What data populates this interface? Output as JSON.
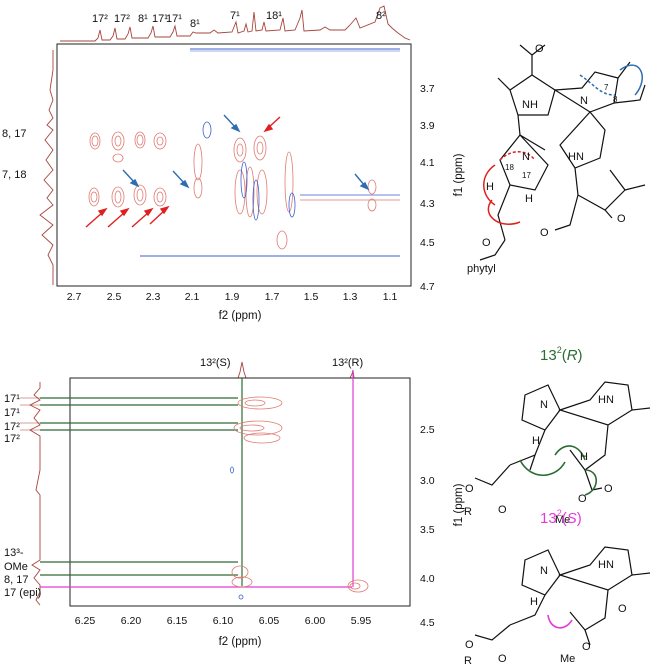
{
  "panel_top": {
    "f2_ticks": [
      "2.7",
      "2.5",
      "2.3",
      "2.1",
      "1.9",
      "1.7",
      "1.5",
      "1.3",
      "1.1"
    ],
    "f1_ticks": [
      "3.7",
      "3.9",
      "4.1",
      "4.3",
      "4.5",
      "4.7"
    ],
    "xlabel": "f2 (ppm)",
    "ylabel": "f1 (ppm)",
    "top_peaks": [
      "17²",
      "17²",
      "8¹",
      "17¹",
      "17¹",
      "8¹",
      "7¹",
      "18¹",
      "8²"
    ],
    "left_labels": [
      "8, 17",
      "7, 18"
    ]
  },
  "panel_bottom": {
    "f2_ticks": [
      "6.25",
      "6.20",
      "6.15",
      "6.10",
      "6.05",
      "6.00",
      "5.95"
    ],
    "f1_ticks": [
      "2.5",
      "3.0",
      "3.5",
      "4.0",
      "4.5"
    ],
    "xlabel": "f2 (ppm)",
    "ylabel": "f1 (ppm)",
    "top_peaks": [
      "13²(S)",
      "13²(R)"
    ],
    "left_labels": [
      "17¹",
      "17¹",
      "17²",
      "17²",
      "13³-",
      "OMe",
      "8, 17",
      "17 (epi)"
    ]
  },
  "structure_top": {
    "labels": [
      "NH",
      "N",
      "N",
      "HN",
      "O",
      "O",
      "O",
      "O",
      "H",
      "H",
      "phytyl",
      "7",
      "8",
      "17",
      "18"
    ]
  },
  "structure_mid": {
    "title_prefix": "13",
    "title_sup": "2",
    "title_open": "(",
    "title_stereo": "R",
    "title_close": ")",
    "color": "#2e6b35",
    "labels": [
      "N",
      "HN",
      "O",
      "O",
      "O",
      "O",
      "H",
      "H",
      "R",
      "Me"
    ]
  },
  "structure_bot": {
    "title_prefix": "13",
    "title_sup": "2",
    "title_open": "(",
    "title_stereo": "S",
    "title_close": ")",
    "color": "#e23bd6",
    "labels": [
      "N",
      "HN",
      "O",
      "O",
      "O",
      "O",
      "H",
      "R",
      "Me"
    ]
  },
  "colors": {
    "contour": "#e07a72",
    "negative": "#3a5fcd",
    "arrow_red": "#e02020",
    "arrow_blue": "#2f6db0",
    "line_green": "#2e6b35",
    "line_magenta": "#e23bd6",
    "trace": "#a8453d"
  }
}
